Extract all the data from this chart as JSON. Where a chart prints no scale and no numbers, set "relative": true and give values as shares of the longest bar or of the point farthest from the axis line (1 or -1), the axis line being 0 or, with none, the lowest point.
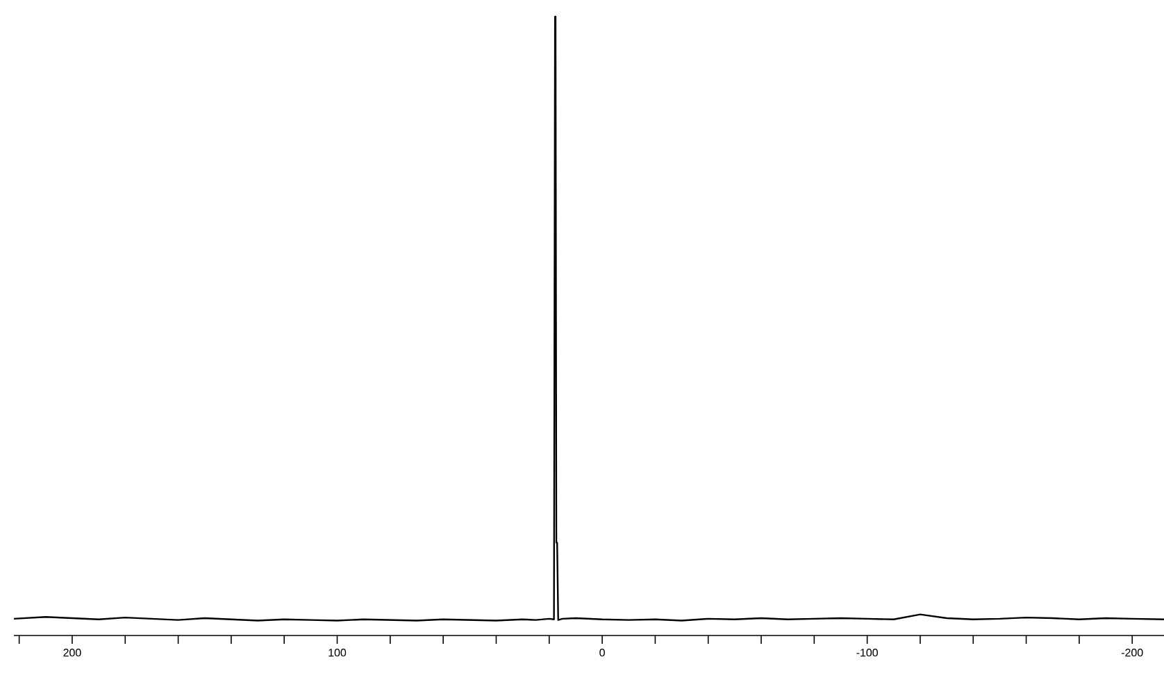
{
  "chart_data": {
    "type": "line",
    "relative": true,
    "color": "#000000",
    "marker": "none",
    "line_style": "solid",
    "xlim": [
      222,
      -212
    ],
    "xticks": [
      {
        "value": 220,
        "label": null
      },
      200,
      {
        "value": 180,
        "label": null
      },
      {
        "value": 160,
        "label": null
      },
      {
        "value": 140,
        "label": null
      },
      {
        "value": 120,
        "label": null
      },
      100,
      {
        "value": 80,
        "label": null
      },
      {
        "value": 60,
        "label": null
      },
      {
        "value": 40,
        "label": null
      },
      {
        "value": 20,
        "label": null
      },
      0,
      {
        "value": -20,
        "label": null
      },
      {
        "value": -40,
        "label": null
      },
      {
        "value": -60,
        "label": null
      },
      {
        "value": -80,
        "label": null
      },
      -100,
      {
        "value": -120,
        "label": null
      },
      {
        "value": -140,
        "label": null
      },
      {
        "value": -160,
        "label": null
      },
      {
        "value": -180,
        "label": null
      },
      -200
    ],
    "x": [
      222,
      210,
      200,
      190,
      180,
      170,
      160,
      150,
      140,
      130,
      120,
      110,
      100,
      90,
      80,
      70,
      60,
      50,
      40,
      30,
      25,
      20,
      18.2,
      17.8,
      17.6,
      17.3,
      17.0,
      16.6,
      15,
      10,
      0,
      -10,
      -20,
      -30,
      -40,
      -50,
      -60,
      -70,
      -80,
      -90,
      -100,
      -110,
      -120,
      -130,
      -140,
      -150,
      -160,
      -170,
      -180,
      -190,
      -200,
      -212
    ],
    "values": [
      0.027,
      0.03,
      0.028,
      0.026,
      0.029,
      0.027,
      0.025,
      0.028,
      0.026,
      0.024,
      0.026,
      0.025,
      0.024,
      0.026,
      0.025,
      0.024,
      0.026,
      0.025,
      0.024,
      0.026,
      0.025,
      0.027,
      0.026,
      1.0,
      1.0,
      0.15,
      0.15,
      0.025,
      0.027,
      0.028,
      0.026,
      0.025,
      0.026,
      0.024,
      0.027,
      0.026,
      0.028,
      0.026,
      0.027,
      0.028,
      0.027,
      0.026,
      0.034,
      0.028,
      0.026,
      0.027,
      0.029,
      0.028,
      0.026,
      0.028,
      0.027,
      0.026
    ]
  }
}
